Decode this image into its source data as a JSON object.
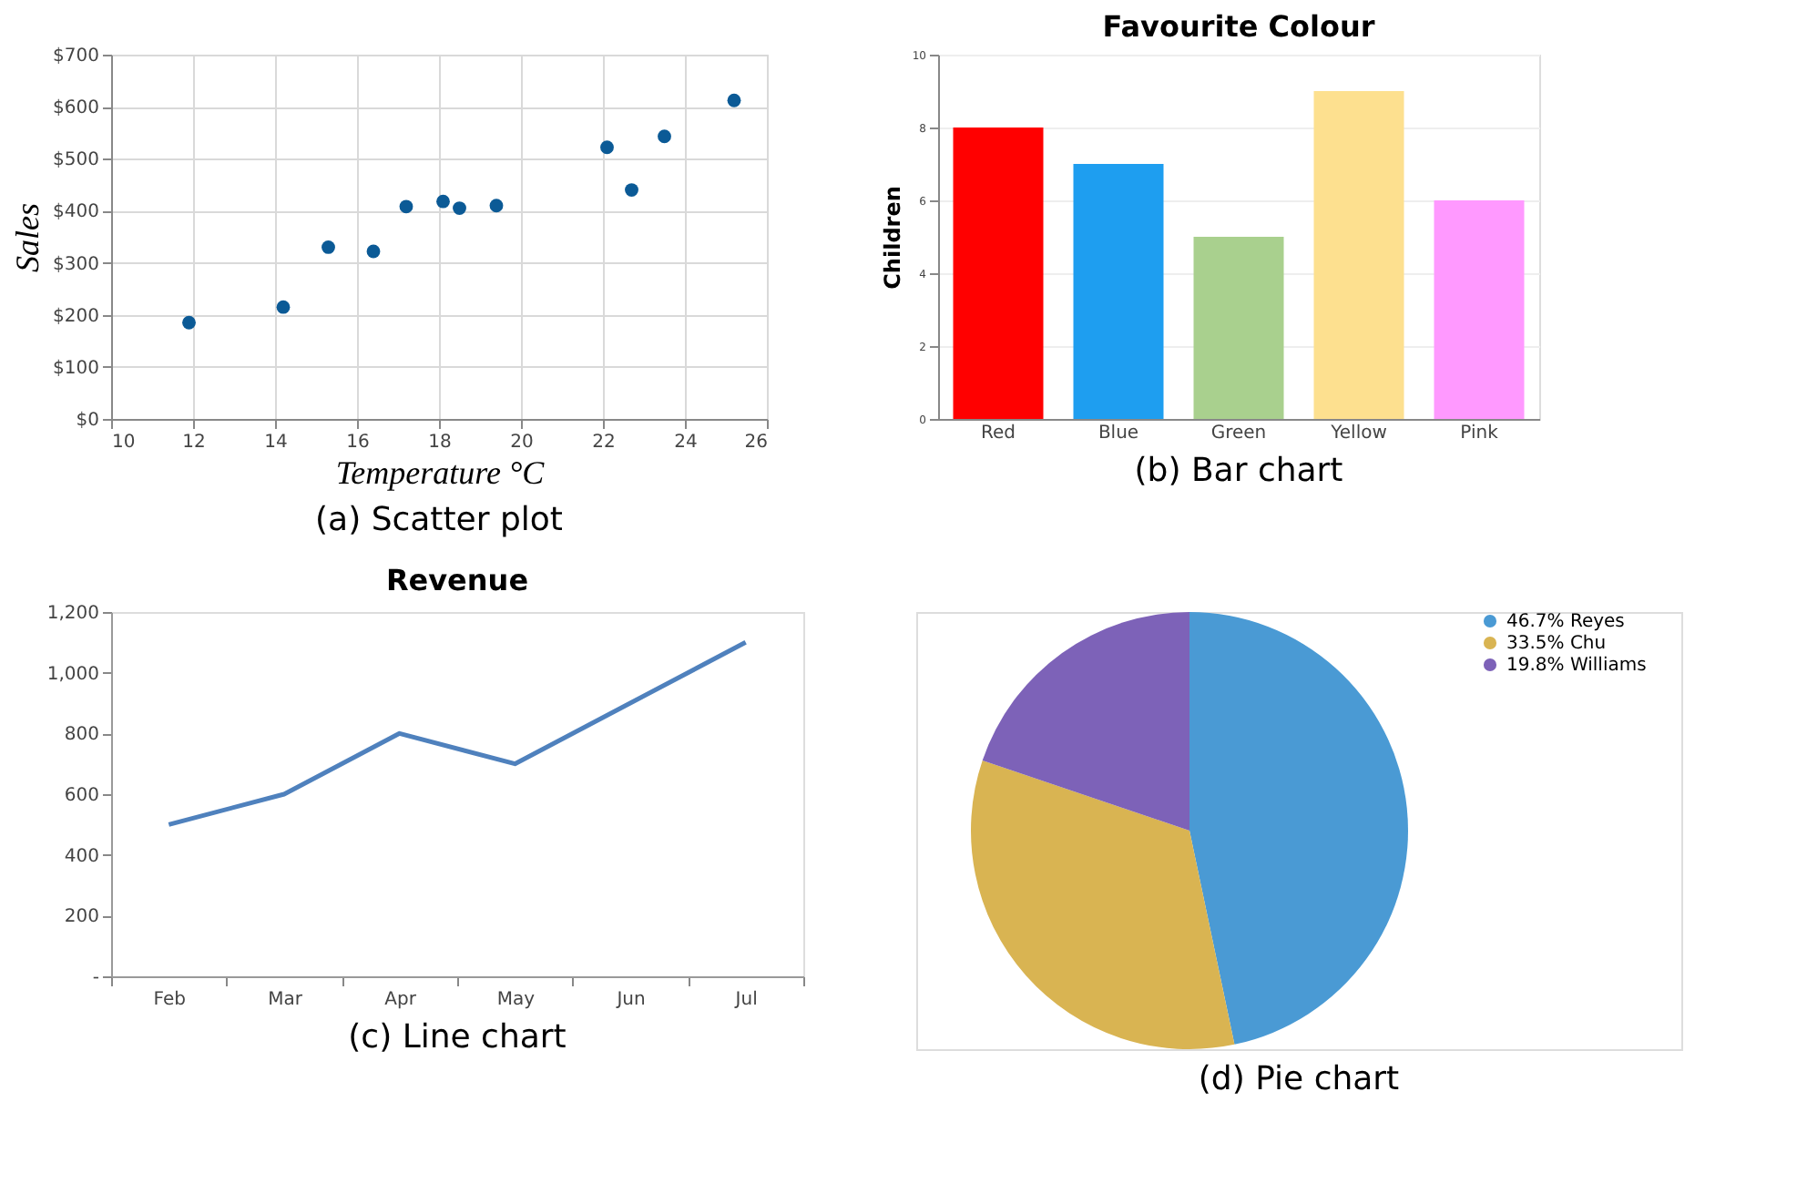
{
  "chart_data": [
    {
      "type": "scatter",
      "xlabel": "Temperature °C",
      "ylabel": "Sales",
      "x": [
        11.9,
        14.2,
        15.3,
        16.4,
        17.2,
        18.1,
        18.5,
        19.4,
        22.1,
        22.7,
        23.5,
        25.2
      ],
      "values": [
        185,
        215,
        330,
        322,
        408,
        418,
        405,
        410,
        522,
        440,
        543,
        612
      ],
      "color": "#0b5a96",
      "xlim": [
        10,
        26
      ],
      "xticks": [
        10,
        12,
        14,
        16,
        18,
        20,
        22,
        24,
        26
      ],
      "ylim": [
        0,
        700
      ],
      "yticks": [
        {
          "value": 0,
          "label": "$0"
        },
        {
          "value": 100,
          "label": "$100"
        },
        {
          "value": 200,
          "label": "$200"
        },
        {
          "value": 300,
          "label": "$300"
        },
        {
          "value": 400,
          "label": "$400"
        },
        {
          "value": 500,
          "label": "$500"
        },
        {
          "value": 600,
          "label": "$600"
        },
        {
          "value": 700,
          "label": "$700"
        }
      ],
      "grid": true,
      "marker": "circle",
      "annotations": [
        "(a) Scatter plot"
      ]
    },
    {
      "type": "bar",
      "title": "Favourite Colour",
      "ylabel": "Children",
      "categories": [
        "Red",
        "Blue",
        "Green",
        "Yellow",
        "Pink"
      ],
      "values": [
        8,
        7,
        5,
        9,
        6
      ],
      "colors": [
        "#ff0000",
        "#1e9ef0",
        "#a9d08e",
        "#fde08f",
        "#ff99ff"
      ],
      "ylim": [
        0,
        10
      ],
      "yticks": [
        0,
        2,
        4,
        6,
        8,
        10
      ],
      "grid": "y",
      "annotations": [
        "(b) Bar chart"
      ]
    },
    {
      "type": "line",
      "title": "Revenue",
      "categories": [
        "Feb",
        "Mar",
        "Apr",
        "May",
        "Jun",
        "Jul"
      ],
      "values": [
        500,
        600,
        800,
        700,
        900,
        1100
      ],
      "color": "#4f81bd",
      "ylim": [
        0,
        1200
      ],
      "yticks": [
        {
          "value": 0,
          "label": "-"
        },
        200,
        400,
        600,
        800,
        {
          "value": 1000,
          "label": "1,000"
        },
        {
          "value": 1200,
          "label": "1,200"
        }
      ],
      "marker": "none",
      "annotations": [
        "(c) Line chart"
      ]
    },
    {
      "type": "pie",
      "categories": [
        "46.7% Reyes",
        "33.5% Chu",
        "19.8% Williams"
      ],
      "values": [
        46.7,
        33.5,
        19.8
      ],
      "colors": [
        "#4a9ad4",
        "#d9b452",
        "#7d62b8"
      ],
      "legend": "top right",
      "annotations": [
        "(d) Pie chart"
      ]
    }
  ]
}
